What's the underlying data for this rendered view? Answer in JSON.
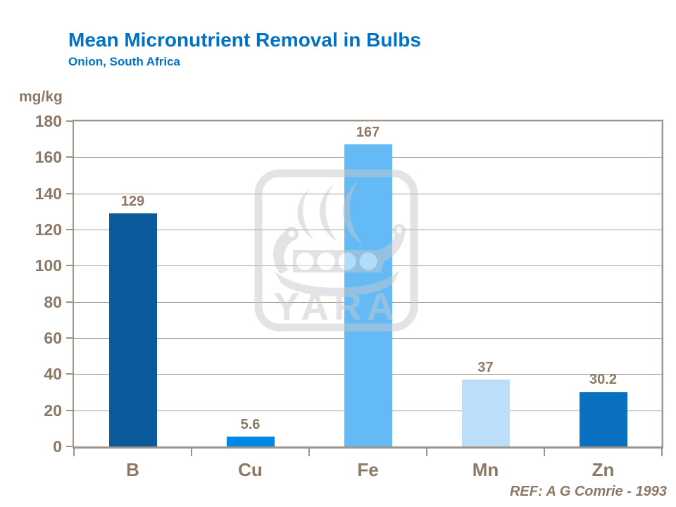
{
  "header": {
    "title": "Mean Micronutrient Removal in Bulbs",
    "subtitle": "Onion, South Africa"
  },
  "footer": {
    "reference": "REF: A G Comrie - 1993"
  },
  "watermark": {
    "name": "yara-logo",
    "text": "YARA"
  },
  "colors": {
    "title_blue": "#0072c6",
    "axis_text": "#8c7866",
    "gridline": "#a89a8c",
    "plot_border": "#a0938a",
    "watermark_gray": "#c8c8cc"
  },
  "chart_data": {
    "type": "bar",
    "title": "Mean Micronutrient Removal in Bulbs",
    "subtitle": "Onion, South Africa",
    "unit_label": "mg/kg",
    "xlabel": "",
    "ylabel": "mg/kg",
    "categories": [
      "B",
      "Cu",
      "Fe",
      "Mn",
      "Zn"
    ],
    "values": [
      129,
      5.6,
      167,
      37,
      30.2
    ],
    "value_labels": [
      "129",
      "5.6",
      "167",
      "37",
      "30.2"
    ],
    "bar_colors": [
      "#0a5a9c",
      "#0088e8",
      "#63baf5",
      "#bddef9",
      "#0a70c0"
    ],
    "ylim": [
      0,
      180
    ],
    "ytick_step": 20,
    "ytick_labels": [
      "0",
      "20",
      "40",
      "60",
      "80",
      "100",
      "120",
      "140",
      "160",
      "180"
    ],
    "grid": true,
    "legend": false
  }
}
